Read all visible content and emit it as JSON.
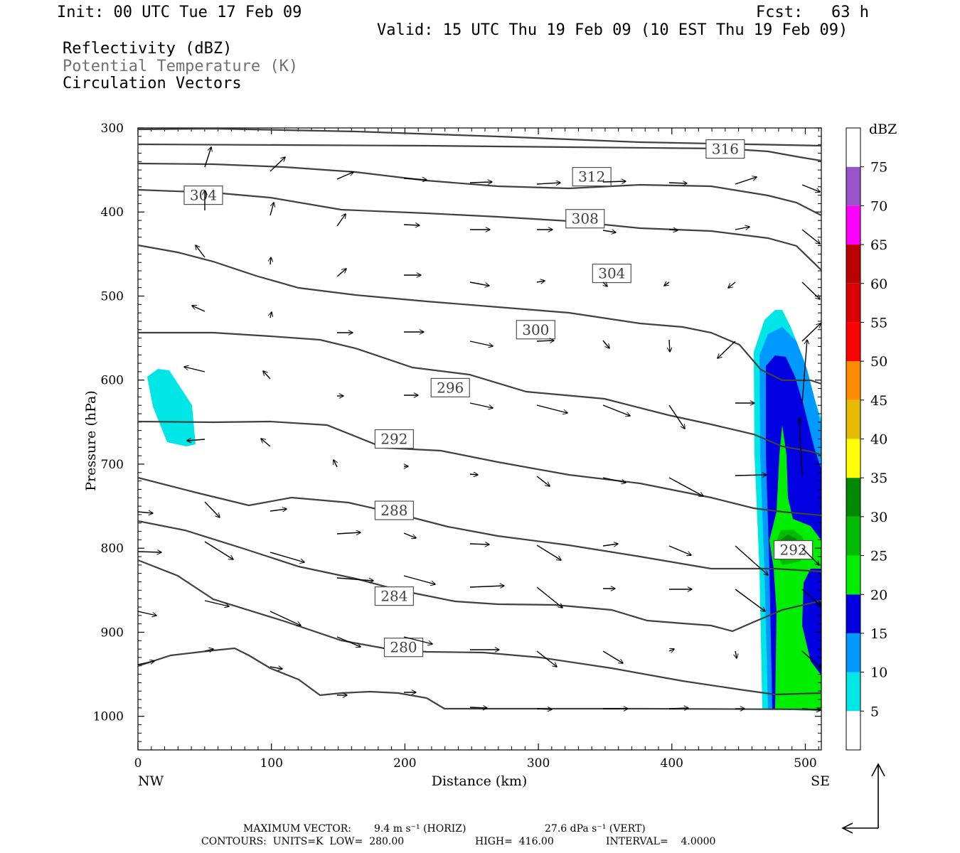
{
  "header": {
    "init": "Init: 00 UTC Tue 17 Feb 09",
    "fcst": "Fcst:   63 h",
    "valid": "Valid: 15 UTC Thu 19 Feb 09 (10 EST Thu 19 Feb 09)",
    "field1": "Reflectivity (dBZ)",
    "field2": "Potential Temperature (K)",
    "field3": "Circulation Vectors"
  },
  "footer": {
    "line1_a": "MAXIMUM VECTOR:",
    "line1_b": "9.4 m s⁻¹ (HORIZ)",
    "line1_c": "27.6 dPa s⁻¹ (VERT)",
    "line2_a": "CONTOURS:  UNITS=K  LOW=  280.00",
    "line2_b": "HIGH=  416.00",
    "line2_c": "INTERVAL=    4.0000"
  },
  "colors": {
    "contour": "#404040",
    "c5": "#00e5e5",
    "c10": "#0099ff",
    "c15": "#0000e0",
    "c20": "#00ee00",
    "c25": "#00bb00",
    "c30": "#008800",
    "c35": "#ffff00",
    "c40": "#e5bb00",
    "c45": "#ff8c00",
    "c50": "#ff0000",
    "c55": "#dd0000",
    "c60": "#bb0000",
    "c65": "#ff00ff",
    "c70": "#9955cc"
  },
  "chart_data": {
    "type": "contour",
    "xlabel": "Distance (km)",
    "ylabel": "Pressure (hPa)",
    "xlim": [
      0,
      512
    ],
    "ylim": [
      1040,
      300
    ],
    "xticks": [
      "0",
      "100",
      "200",
      "300",
      "400",
      "500"
    ],
    "yticks": [
      "300",
      "400",
      "500",
      "600",
      "700",
      "800",
      "900",
      "1000"
    ],
    "x_end_labels": {
      "left": "NW",
      "right": "SE"
    },
    "colorbar": {
      "title": "dBZ",
      "levels": [
        "5",
        "10",
        "15",
        "20",
        "25",
        "30",
        "35",
        "40",
        "45",
        "50",
        "55",
        "60",
        "65",
        "70",
        "75"
      ]
    },
    "theta_contour_labels": [
      {
        "value": "316",
        "x": 440,
        "p": 325
      },
      {
        "value": "312",
        "x": 340,
        "p": 358
      },
      {
        "value": "304",
        "x": 49,
        "p": 380
      },
      {
        "value": "308",
        "x": 335,
        "p": 408
      },
      {
        "value": "304",
        "x": 355,
        "p": 473
      },
      {
        "value": "300",
        "x": 298,
        "p": 540
      },
      {
        "value": "296",
        "x": 234,
        "p": 609
      },
      {
        "value": "292",
        "x": 192,
        "p": 670
      },
      {
        "value": "288",
        "x": 192,
        "p": 755
      },
      {
        "value": "292",
        "x": 491,
        "p": 802
      },
      {
        "value": "284",
        "x": 192,
        "p": 857
      },
      {
        "value": "280",
        "x": 199,
        "p": 918
      }
    ]
  }
}
